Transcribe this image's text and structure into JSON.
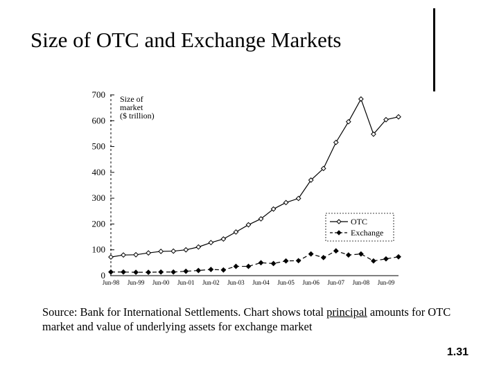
{
  "slide": {
    "title": "Size of OTC and Exchange Markets",
    "caption_part1": "Source: Bank for International Settlements. Chart shows total ",
    "caption_underlined": "principal",
    "caption_part2": " amounts for OTC market and value of underlying assets for exchange market",
    "page_number": "1.31"
  },
  "chart_data": {
    "type": "line",
    "ylabel": "Size of market ($ trillion)",
    "ylabel_lines": [
      "Size of",
      "market",
      "($ trillion)"
    ],
    "ylim": [
      0,
      700
    ],
    "yticks": [
      0,
      100,
      200,
      300,
      400,
      500,
      600,
      700
    ],
    "xtick_labels": [
      "Jun-98",
      "Jun-99",
      "Jun-00",
      "Jun-01",
      "Jun-02",
      "Jun-03",
      "Jun-04",
      "Jun-05",
      "Jun-06",
      "Jun-07",
      "Jun-08",
      "Jun-09"
    ],
    "grid": false,
    "legend_position": "lower-right",
    "series": [
      {
        "name": "OTC",
        "line_style": "solid",
        "values": [
          72,
          80,
          81,
          88,
          94,
          95,
          100,
          111,
          128,
          142,
          169,
          197,
          220,
          258,
          283,
          299,
          370,
          415,
          516,
          596,
          684,
          548,
          604,
          615
        ]
      },
      {
        "name": "Exchange",
        "line_style": "dashed",
        "values": [
          14,
          14,
          13,
          13,
          14,
          14,
          17,
          20,
          24,
          22,
          36,
          36,
          50,
          47,
          57,
          58,
          84,
          70,
          96,
          80,
          84,
          57,
          65,
          73
        ]
      }
    ],
    "colors": {
      "line": "#000000",
      "marker_fill": "#ffffff"
    }
  }
}
